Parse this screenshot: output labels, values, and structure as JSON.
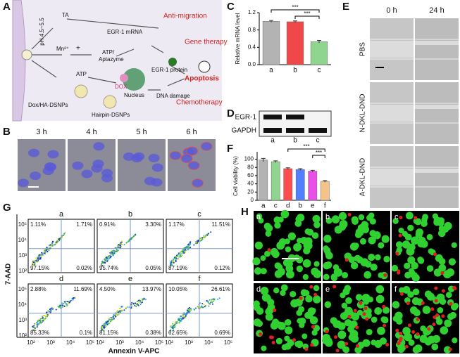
{
  "panels": [
    "A",
    "B",
    "C",
    "D",
    "E",
    "F",
    "G",
    "H"
  ],
  "diagram": {
    "ph": "pH 4.5~5.5",
    "ta": "TA",
    "mn": "Mn²⁺",
    "plus": "+",
    "atp_aptazyme": [
      "ATP/",
      "Aptazyme"
    ],
    "mrna": "EGR-1 mRNA",
    "protein": "EGR-1 protein",
    "anti_migration": "Anti-migration",
    "gene_therapy": "Gene therapy",
    "apoptosis": "Apoptosis",
    "atp": "ATP",
    "dox": "DOX",
    "nucleus": "Nucleus",
    "dna_damage": "DNA damage",
    "chemotherapy": "Chemotherapy",
    "dox_nps": "Dox/HA-DSNPs",
    "hairpin_nps": "Hairpin-DSNPs"
  },
  "imaging": {
    "times": [
      "3 h",
      "4 h",
      "5 h",
      "6 h"
    ]
  },
  "blot": {
    "rows": [
      "EGR-1",
      "GAPDH"
    ],
    "lanes": [
      "a",
      "b",
      "c"
    ]
  },
  "wound": {
    "times": [
      "0 h",
      "24 h"
    ],
    "groups": [
      "PBS",
      "N-DKL-DND",
      "A-DKL-DND"
    ]
  },
  "chart_data": [
    {
      "type": "bar",
      "ylabel": "Relative mRNA level",
      "categories": [
        "a",
        "b",
        "c"
      ],
      "values": [
        1.0,
        0.99,
        0.53
      ],
      "errors": [
        0.02,
        0.02,
        0.03
      ],
      "colors": [
        "#b3b3b3",
        "#f04848",
        "#8fd48f"
      ],
      "ylim": [
        0,
        1.2
      ],
      "yticks": [
        {
          "value": 0,
          "label": "0.0"
        },
        0.4,
        0.8,
        1.2
      ],
      "brackets": [
        {
          "text": "***",
          "between": [
            0,
            2
          ]
        },
        {
          "text": "***",
          "between": [
            1,
            2
          ]
        }
      ]
    },
    {
      "type": "bar",
      "ylabel": "Cell viability (%)",
      "categories": [
        "a",
        "c",
        "d",
        "b",
        "e",
        "f"
      ],
      "values": [
        98,
        94,
        77,
        75,
        71,
        46
      ],
      "errors": [
        4,
        2,
        2,
        2,
        2,
        2
      ],
      "colors": [
        "#b3b3b3",
        "#8fd48f",
        "#ff4d4d",
        "#5080ff",
        "#e850e8",
        "#f5c28a"
      ],
      "ylim": [
        0,
        118
      ],
      "yticks": [
        0,
        20,
        40,
        60,
        80,
        100
      ],
      "brackets": [
        {
          "text": "***",
          "between": [
            2,
            5
          ]
        },
        {
          "text": "***",
          "between": [
            4,
            5
          ]
        }
      ]
    }
  ],
  "flow": {
    "ylabel": "7-AAD",
    "xlabel": "Annexin V-APC",
    "ticks": [
      "10²",
      "10³",
      "10⁴",
      "10⁵"
    ],
    "plots": [
      {
        "label": "a",
        "ul": "1.11%",
        "ur": "1.71%",
        "ll": "97.15%",
        "lr": "0.02%"
      },
      {
        "label": "b",
        "ul": "0.91%",
        "ur": "3.30%",
        "ll": "95.74%",
        "lr": "0.05%"
      },
      {
        "label": "c",
        "ul": "1.17%",
        "ur": "11.51%",
        "ll": "87.19%",
        "lr": "0.12%"
      },
      {
        "label": "d",
        "ul": "2.88%",
        "ur": "11.69%",
        "ll": "85.33%",
        "lr": "0.1%"
      },
      {
        "label": "e",
        "ul": "4.50%",
        "ur": "13.97%",
        "ll": "81.15%",
        "lr": "0.38%"
      },
      {
        "label": "f",
        "ul": "10.05%",
        "ur": "26.61%",
        "ll": "62.65%",
        "lr": "0.69%"
      }
    ]
  },
  "live_dead": {
    "labels": [
      "a",
      "b",
      "c",
      "d",
      "e",
      "f"
    ]
  }
}
